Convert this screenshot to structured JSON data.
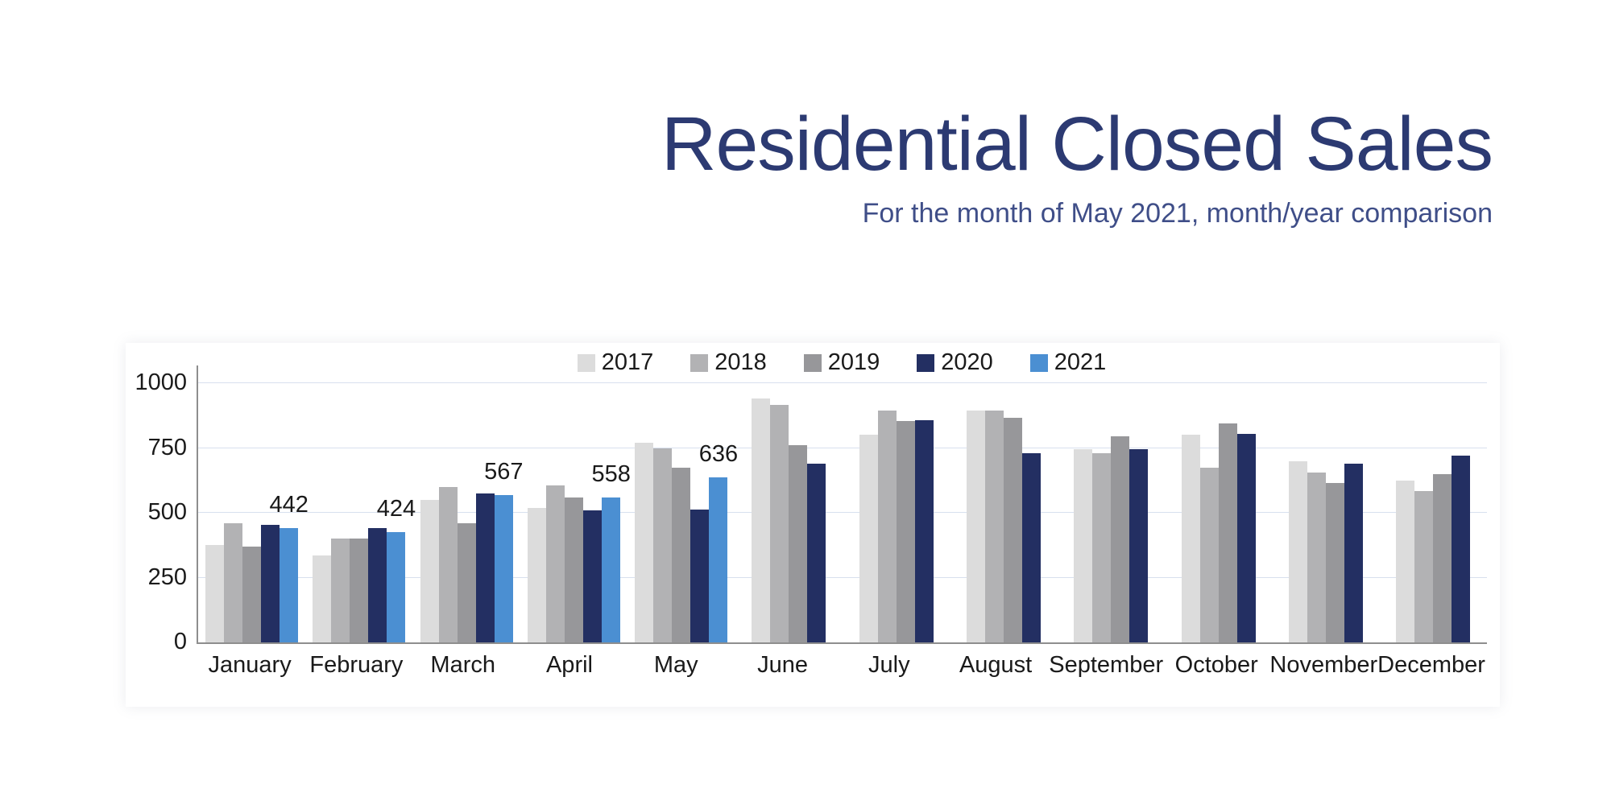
{
  "header": {
    "title": "Residential Closed Sales",
    "subtitle": "For the month of May 2021, month/year comparison",
    "title_color": "#2c3a72",
    "subtitle_color": "#3f4e88"
  },
  "chart_data": {
    "type": "bar",
    "title": "Residential Closed Sales",
    "subtitle": "For the month of May 2021, month/year comparison",
    "categories": [
      "January",
      "February",
      "March",
      "April",
      "May",
      "June",
      "July",
      "August",
      "September",
      "October",
      "November",
      "December"
    ],
    "series": [
      {
        "name": "2017",
        "color": "#dcdcdc",
        "values": [
          375,
          335,
          550,
          520,
          770,
          940,
          800,
          895,
          745,
          800,
          700,
          625
        ]
      },
      {
        "name": "2018",
        "color": "#b2b2b4",
        "values": [
          460,
          400,
          600,
          605,
          750,
          915,
          895,
          895,
          730,
          675,
          655,
          585
        ]
      },
      {
        "name": "2019",
        "color": "#97979a",
        "values": [
          370,
          400,
          460,
          560,
          675,
          760,
          855,
          865,
          795,
          845,
          615,
          650
        ]
      },
      {
        "name": "2020",
        "color": "#232f62",
        "values": [
          452,
          440,
          575,
          510,
          512,
          690,
          858,
          730,
          745,
          805,
          690,
          720
        ]
      },
      {
        "name": "2021",
        "color": "#4b8fd2",
        "values": [
          442,
          424,
          567,
          558,
          636,
          null,
          null,
          null,
          null,
          null,
          null,
          null
        ]
      }
    ],
    "value_labels": {
      "series": "2021",
      "values": [
        442,
        424,
        567,
        558,
        636
      ]
    },
    "ylim": [
      0,
      1000
    ],
    "yticks": [
      "0",
      "250",
      "500",
      "750",
      "1000"
    ],
    "grid": true,
    "legend_position": "top-center",
    "colors": {
      "gridline": "#d8e0ee",
      "axis": "#8e8e8e",
      "tick_text": "#1a1a1a"
    }
  }
}
